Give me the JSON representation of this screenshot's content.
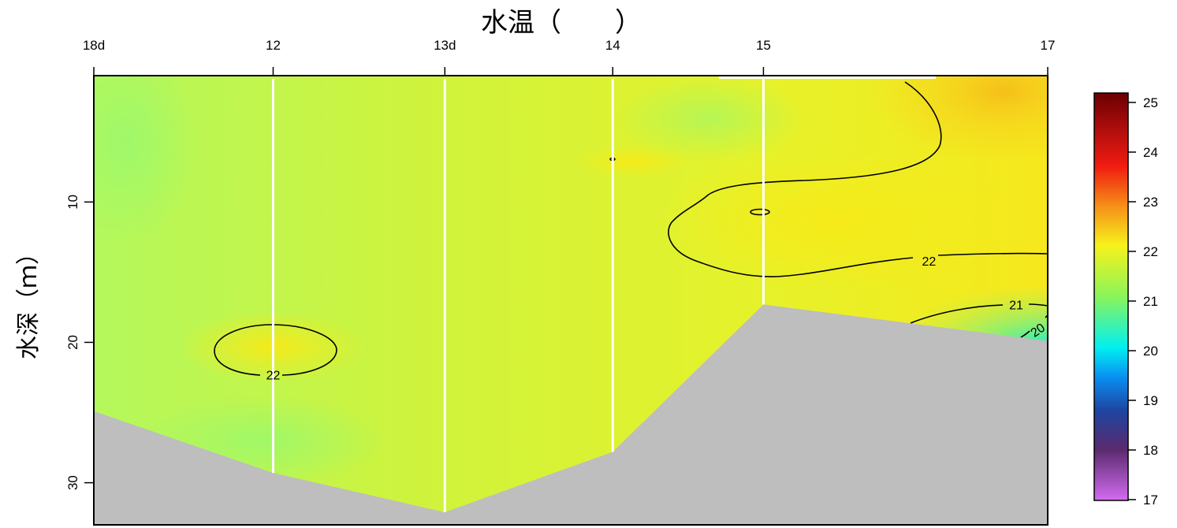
{
  "chart_data": {
    "type": "heatmap",
    "title": "水温（　　）",
    "xlabel": "",
    "ylabel": "水深（ｍ）",
    "x_stations": [
      "18d",
      "12",
      "13d",
      "14",
      "15",
      "17"
    ],
    "station_distance": [
      0,
      1.88,
      3.68,
      5.44,
      7.02,
      10
    ],
    "ylim": [
      33,
      1
    ],
    "y_ticks": [
      10,
      20,
      30
    ],
    "colorbar": {
      "min": 17,
      "max": 25,
      "ticks": [
        "17",
        "18",
        "19",
        "20",
        "21",
        "22",
        "23",
        "24",
        "25"
      ]
    },
    "bottom_depth": [
      {
        "station": "18d",
        "depth": 24.9
      },
      {
        "station": "12",
        "depth": 29.3
      },
      {
        "station": "13d",
        "depth": 32.1
      },
      {
        "station": "14",
        "depth": 27.8
      },
      {
        "station": "15",
        "depth": 17.3
      },
      {
        "station": "17",
        "depth": 19.9
      }
    ],
    "contour_labels": [
      {
        "text": "22",
        "station": "12",
        "depth": 22.3
      },
      {
        "text": "22",
        "station": "15",
        "depth": 14.2
      },
      {
        "text": "21",
        "station": "17",
        "depth": 17.3
      },
      {
        "text": "20",
        "station": "17",
        "depth": 19.1
      }
    ],
    "colors": {
      "seabed": "#bebebe",
      "cast_line": "#ffffff",
      "frame": "#000000"
    }
  }
}
